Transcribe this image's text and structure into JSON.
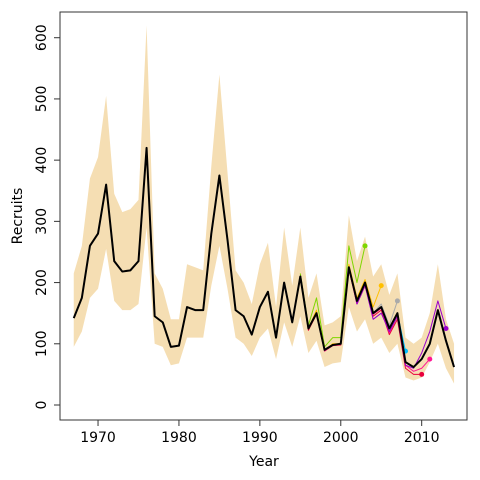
{
  "chart_data": {
    "type": "line",
    "xlabel": "Year",
    "ylabel": "Recruits",
    "xlim": [
      1965.3,
      2015.6
    ],
    "ylim": [
      -24.5,
      642
    ],
    "xticks": [
      1970,
      1980,
      1990,
      2000,
      2010
    ],
    "yticks": [
      0,
      100,
      200,
      300,
      400,
      500,
      600
    ],
    "x": [
      1967,
      1968,
      1969,
      1970,
      1971,
      1972,
      1973,
      1974,
      1975,
      1976,
      1977,
      1978,
      1979,
      1980,
      1981,
      1982,
      1983,
      1984,
      1985,
      1986,
      1987,
      1988,
      1989,
      1990,
      1991,
      1992,
      1993,
      1994,
      1995,
      1996,
      1997,
      1998,
      1999,
      2000,
      2001,
      2002,
      2003,
      2004,
      2005,
      2006,
      2007,
      2008,
      2009,
      2010,
      2011,
      2012,
      2013,
      2014
    ],
    "band": {
      "color": "#f5deb3",
      "upper": [
        215,
        260,
        370,
        405,
        505,
        345,
        315,
        320,
        335,
        620,
        215,
        190,
        140,
        140,
        230,
        225,
        220,
        390,
        540,
        380,
        220,
        200,
        165,
        230,
        265,
        160,
        290,
        195,
        290,
        175,
        215,
        130,
        135,
        145,
        310,
        235,
        275,
        210,
        230,
        180,
        215,
        110,
        100,
        110,
        150,
        230,
        140,
        100
      ],
      "lower": [
        95,
        120,
        175,
        190,
        255,
        170,
        155,
        155,
        165,
        290,
        100,
        95,
        65,
        68,
        110,
        110,
        110,
        195,
        260,
        190,
        110,
        100,
        80,
        110,
        125,
        75,
        135,
        95,
        145,
        85,
        105,
        62,
        68,
        70,
        160,
        120,
        140,
        100,
        110,
        85,
        100,
        45,
        40,
        45,
        70,
        100,
        60,
        35
      ]
    },
    "series": [
      {
        "color": "#7fd600",
        "values": [
          null,
          null,
          null,
          null,
          null,
          null,
          null,
          null,
          null,
          null,
          null,
          null,
          null,
          null,
          null,
          null,
          null,
          null,
          null,
          null,
          null,
          null,
          null,
          null,
          null,
          null,
          null,
          null,
          215,
          130,
          175,
          95,
          110,
          110,
          260,
          200,
          260,
          null,
          null,
          null,
          null,
          null,
          null,
          null,
          null,
          null,
          null,
          null
        ]
      },
      {
        "color": "#ffc000",
        "values": [
          null,
          null,
          null,
          null,
          null,
          null,
          null,
          null,
          null,
          null,
          null,
          null,
          null,
          null,
          null,
          null,
          null,
          null,
          null,
          null,
          null,
          null,
          null,
          null,
          null,
          null,
          null,
          null,
          210,
          125,
          155,
          90,
          100,
          100,
          230,
          175,
          205,
          160,
          195,
          null,
          null,
          null,
          null,
          null,
          null,
          null,
          null,
          null
        ]
      },
      {
        "color": "#aaaaaa",
        "values": [
          null,
          null,
          null,
          null,
          null,
          null,
          null,
          null,
          null,
          null,
          null,
          null,
          null,
          null,
          null,
          null,
          null,
          null,
          null,
          null,
          null,
          null,
          null,
          null,
          null,
          null,
          null,
          null,
          210,
          125,
          150,
          90,
          98,
          100,
          225,
          170,
          200,
          150,
          165,
          130,
          170,
          null,
          null,
          null,
          null,
          null,
          null,
          null
        ]
      },
      {
        "color": "#00bfff",
        "values": [
          null,
          null,
          null,
          null,
          null,
          null,
          null,
          null,
          null,
          null,
          null,
          null,
          null,
          null,
          null,
          null,
          null,
          null,
          null,
          null,
          null,
          null,
          null,
          null,
          null,
          null,
          null,
          null,
          210,
          125,
          150,
          90,
          98,
          100,
          225,
          170,
          200,
          150,
          160,
          125,
          150,
          88,
          null,
          null,
          null,
          null,
          null,
          null
        ]
      },
      {
        "color": "#e8003c",
        "values": [
          null,
          null,
          null,
          null,
          null,
          null,
          null,
          null,
          null,
          null,
          null,
          null,
          null,
          null,
          null,
          null,
          null,
          null,
          null,
          null,
          null,
          null,
          null,
          null,
          null,
          null,
          null,
          null,
          208,
          122,
          148,
          88,
          97,
          98,
          222,
          165,
          195,
          145,
          155,
          115,
          140,
          60,
          50,
          50,
          null,
          null,
          null,
          null
        ]
      },
      {
        "color": "#ff1493",
        "values": [
          null,
          null,
          null,
          null,
          null,
          null,
          null,
          null,
          null,
          null,
          null,
          null,
          null,
          null,
          null,
          null,
          null,
          null,
          null,
          null,
          null,
          null,
          null,
          null,
          null,
          null,
          null,
          null,
          210,
          125,
          150,
          88,
          97,
          99,
          223,
          168,
          197,
          148,
          158,
          118,
          145,
          65,
          55,
          60,
          75,
          null,
          null,
          null
        ]
      },
      {
        "color": "#9900cc",
        "values": [
          null,
          null,
          null,
          null,
          null,
          null,
          null,
          null,
          null,
          null,
          null,
          null,
          null,
          null,
          null,
          null,
          null,
          null,
          null,
          null,
          null,
          null,
          null,
          null,
          null,
          null,
          null,
          null,
          210,
          125,
          150,
          90,
          98,
          100,
          225,
          165,
          195,
          140,
          150,
          120,
          145,
          65,
          60,
          85,
          120,
          170,
          125,
          null
        ]
      },
      {
        "color": "#000000",
        "width": 2,
        "values": [
          142,
          175,
          260,
          280,
          360,
          235,
          218,
          220,
          235,
          420,
          145,
          135,
          95,
          97,
          160,
          155,
          155,
          280,
          375,
          270,
          155,
          145,
          115,
          160,
          185,
          110,
          200,
          135,
          210,
          125,
          150,
          90,
          98,
          100,
          225,
          170,
          200,
          150,
          160,
          125,
          150,
          70,
          62,
          75,
          100,
          155,
          105,
          62
        ]
      }
    ]
  }
}
